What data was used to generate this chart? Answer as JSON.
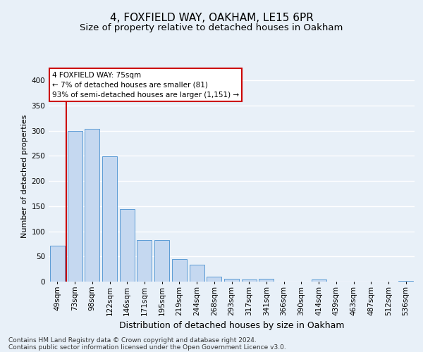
{
  "title1": "4, FOXFIELD WAY, OAKHAM, LE15 6PR",
  "title2": "Size of property relative to detached houses in Oakham",
  "xlabel": "Distribution of detached houses by size in Oakham",
  "ylabel": "Number of detached properties",
  "categories": [
    "49sqm",
    "73sqm",
    "98sqm",
    "122sqm",
    "146sqm",
    "171sqm",
    "195sqm",
    "219sqm",
    "244sqm",
    "268sqm",
    "293sqm",
    "317sqm",
    "341sqm",
    "366sqm",
    "390sqm",
    "414sqm",
    "439sqm",
    "463sqm",
    "487sqm",
    "512sqm",
    "536sqm"
  ],
  "values": [
    72,
    300,
    304,
    249,
    144,
    82,
    82,
    45,
    33,
    10,
    6,
    4,
    6,
    0,
    0,
    4,
    0,
    0,
    0,
    0,
    2
  ],
  "bar_color": "#c5d8f0",
  "bar_edge_color": "#5b9bd5",
  "vline_x_index": 1,
  "vline_color": "#cc0000",
  "annotation_text": "4 FOXFIELD WAY: 75sqm\n← 7% of detached houses are smaller (81)\n93% of semi-detached houses are larger (1,151) →",
  "annotation_box_color": "#ffffff",
  "annotation_box_edge": "#cc0000",
  "ylim": [
    0,
    420
  ],
  "yticks": [
    0,
    50,
    100,
    150,
    200,
    250,
    300,
    350,
    400
  ],
  "footer1": "Contains HM Land Registry data © Crown copyright and database right 2024.",
  "footer2": "Contains public sector information licensed under the Open Government Licence v3.0.",
  "background_color": "#e8f0f8",
  "plot_bg_color": "#e8f0f8",
  "grid_color": "#ffffff",
  "title1_fontsize": 11,
  "title2_fontsize": 9.5,
  "xlabel_fontsize": 9,
  "ylabel_fontsize": 8,
  "tick_fontsize": 7.5,
  "ann_fontsize": 7.5,
  "footer_fontsize": 6.5
}
